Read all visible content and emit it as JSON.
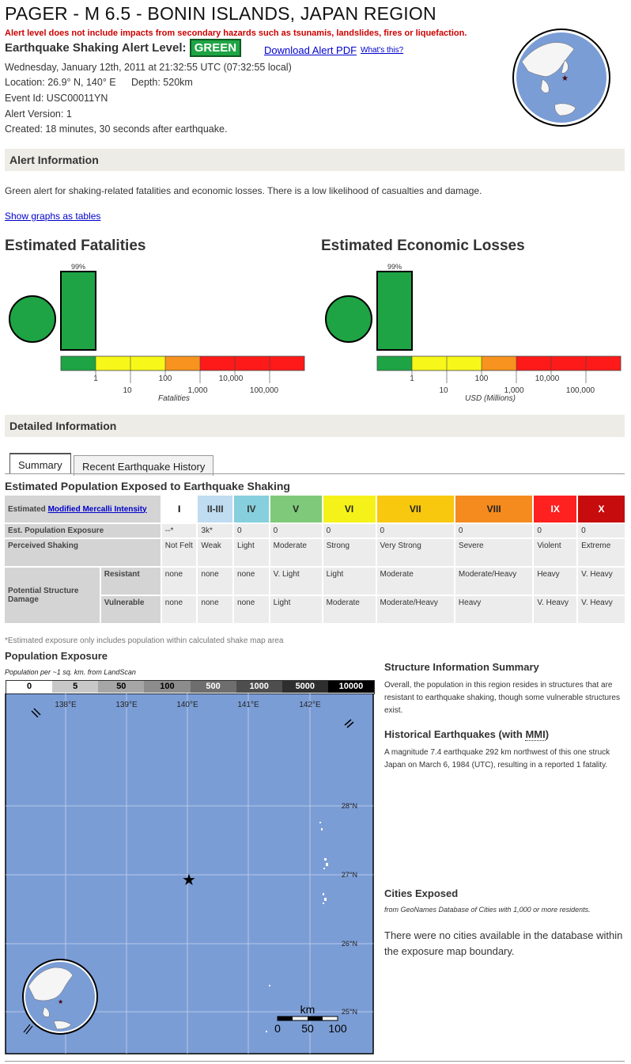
{
  "header": {
    "title": "PAGER - M 6.5 - BONIN ISLANDS, JAPAN REGION",
    "disclaimer": "Alert level does not include impacts from secondary hazards such as tsunamis, landslides, fires or liquefaction.",
    "alert_label": "Earthquake Shaking Alert Level:",
    "alert_level": "GREEN",
    "download_link": "Download Alert PDF",
    "whats_this": "What's this?",
    "datetime": "Wednesday, January 12th, 2011 at 21:32:55 UTC (07:32:55 local)",
    "location": "Location: 26.9° N, 140° E",
    "depth": "Depth: 520km",
    "event_id": "Event Id: USC00011YN",
    "alert_version": "Alert Version: 1",
    "created": "Created: 18 minutes, 30 seconds after earthquake."
  },
  "alert_info": {
    "heading": "Alert Information",
    "text": "Green alert for shaking-related fatalities and economic losses. There is a low likelihood of casualties and damage.",
    "show_tables_link": "Show graphs as tables"
  },
  "charts": {
    "fatalities_title": "Estimated Fatalities",
    "losses_title": "Estimated Economic Losses",
    "fatalities_axis": "Fatalities",
    "losses_axis": "USD (Millions)",
    "top_ticks": [
      "1",
      "100",
      "10,000"
    ],
    "bottom_ticks": [
      "10",
      "1,000",
      "100,000"
    ]
  },
  "chart_data": [
    {
      "type": "bar",
      "title": "Estimated Fatalities",
      "xlabel": "Fatalities",
      "categories": [
        "0-1",
        "1-10",
        "10-100",
        "100-1,000",
        "1,000-10,000",
        "10,000-100,000",
        "100,000+"
      ],
      "values": [
        99,
        0,
        0,
        0,
        0,
        0,
        0
      ],
      "value_labels": [
        "99%"
      ],
      "ylim": [
        0,
        100
      ]
    },
    {
      "type": "bar",
      "title": "Estimated Economic Losses",
      "xlabel": "USD (Millions)",
      "categories": [
        "0-1",
        "1-10",
        "10-100",
        "100-1,000",
        "1,000-10,000",
        "10,000-100,000",
        "100,000+"
      ],
      "values": [
        99,
        0,
        0,
        0,
        0,
        0,
        0
      ],
      "value_labels": [
        "99%"
      ],
      "ylim": [
        0,
        100
      ]
    }
  ],
  "detailed": {
    "heading": "Detailed Information",
    "tabs": [
      "Summary",
      "Recent Earthquake History"
    ],
    "pop_title": "Estimated Population Exposed to Earthquake Shaking"
  },
  "table": {
    "mmi_label_prefix": "Estimated ",
    "mmi_link": "Modified Mercalli Intensity",
    "mmi": [
      "I",
      "II-III",
      "IV",
      "V",
      "VI",
      "VII",
      "VIII",
      "IX",
      "X"
    ],
    "mmi_colors": [
      "#ffffff",
      "#bfdcf0",
      "#86cfdc",
      "#7ec97a",
      "#f5f21a",
      "#f8c80e",
      "#f58b1e",
      "#ff2020",
      "#c60c0c"
    ],
    "mmi_text_colors": [
      "#000000",
      "#333333",
      "#333333",
      "#222222",
      "#222222",
      "#222222",
      "#222222",
      "#ffffff",
      "#ffffff"
    ],
    "row_exposure_label": "Est. Population Exposure",
    "exposure": [
      "--*",
      "3k*",
      "0",
      "0",
      "0",
      "0",
      "0",
      "0",
      "0"
    ],
    "row_shaking_label": "Perceived Shaking",
    "shaking": [
      "Not Felt",
      "Weak",
      "Light",
      "Moderate",
      "Strong",
      "Very Strong",
      "Severe",
      "Violent",
      "Extreme"
    ],
    "row_damage_label": "Potential Structure Damage",
    "resistant_label": "Resistant",
    "resistant": [
      "none",
      "none",
      "none",
      "V. Light",
      "Light",
      "Moderate",
      "Moderate/Heavy",
      "Heavy",
      "V. Heavy"
    ],
    "vulnerable_label": "Vulnerable",
    "vulnerable": [
      "none",
      "none",
      "none",
      "Light",
      "Moderate",
      "Moderate/Heavy",
      "Heavy",
      "V. Heavy",
      "V. Heavy"
    ],
    "footnote": "*Estimated exposure only includes population within calculated shake map area"
  },
  "population_map": {
    "title": "Population Exposure",
    "subtitle": "Population per ~1 sq. km. from LandScan",
    "legend": [
      "0",
      "5",
      "50",
      "100",
      "500",
      "1000",
      "5000",
      "10000"
    ],
    "legend_colors": [
      "#ffffff",
      "#c8c8c8",
      "#a6a6a6",
      "#8c8c8c",
      "#6e6e6e",
      "#4e4e4e",
      "#2e2e2e",
      "#000000"
    ],
    "lon_labels": [
      "138°E",
      "139°E",
      "140°E",
      "141°E",
      "142°E"
    ],
    "lat_labels": [
      "28°N",
      "27°N",
      "26°N",
      "25°N"
    ],
    "scale_unit": "km",
    "scale_labels": [
      "0",
      "50",
      "100"
    ],
    "ocean_color": "#7b9dd6"
  },
  "sidebar": {
    "structure_title": "Structure Information Summary",
    "structure_text": "Overall, the population in this region resides in structures that are resistant to earthquake shaking, though some vulnerable structures exist.",
    "historical_title_prefix": "Historical Earthquakes (with ",
    "historical_title_abbr": "MMI",
    "historical_title_suffix": ")",
    "historical_text": "A magnitude 7.4 earthquake 292 km northwest of this one struck Japan on March 6, 1984 (UTC), resulting in a reported 1 fatality.",
    "cities_title": "Cities Exposed",
    "cities_source": "from GeoNames Database of Cities with 1,000 or more residents.",
    "cities_text": "There were no cities available in the database within the exposure map boundary."
  }
}
